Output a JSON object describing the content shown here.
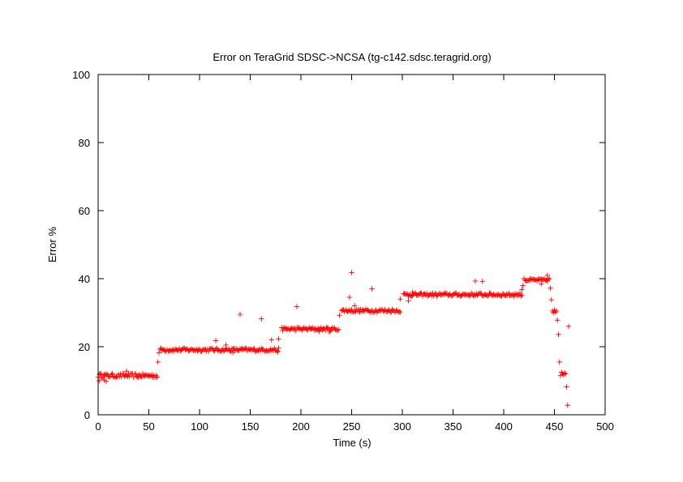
{
  "chart_data": {
    "type": "scatter",
    "title": "Error on TeraGrid SDSC->NCSA (tg-c142.sdsc.teragrid.org)",
    "xlabel": "Time (s)",
    "ylabel": "Error %",
    "xlim": [
      0,
      500
    ],
    "ylim": [
      0,
      100
    ],
    "xticks": [
      "0",
      "50",
      "100",
      "150",
      "200",
      "250",
      "300",
      "350",
      "400",
      "450",
      "500"
    ],
    "yticks": [
      "0",
      "20",
      "40",
      "60",
      "80",
      "100"
    ],
    "grid": false,
    "marker": "+",
    "series_color": "#ff0000",
    "segments": [
      {
        "x_start": 0,
        "x_end": 58,
        "level": 11.5,
        "spread": 0.6
      },
      {
        "x_start": 61,
        "x_end": 178,
        "level": 19.1,
        "spread": 0.5
      },
      {
        "x_start": 181,
        "x_end": 237,
        "level": 25.2,
        "spread": 0.5
      },
      {
        "x_start": 240,
        "x_end": 298,
        "level": 30.6,
        "spread": 0.5
      },
      {
        "x_start": 301,
        "x_end": 418,
        "level": 35.3,
        "spread": 0.5
      },
      {
        "x_start": 421,
        "x_end": 444,
        "level": 39.6,
        "spread": 0.4
      }
    ],
    "points": [
      [
        1,
        10
      ],
      [
        3,
        12
      ],
      [
        6,
        10.2
      ],
      [
        8,
        9.8
      ],
      [
        28,
        12.8
      ],
      [
        40,
        11
      ],
      [
        58,
        11
      ],
      [
        59,
        15.5
      ],
      [
        60,
        18.2
      ],
      [
        116,
        21.8
      ],
      [
        126,
        20.5
      ],
      [
        133,
        18.3
      ],
      [
        140,
        29.5
      ],
      [
        161,
        28.2
      ],
      [
        171,
        22
      ],
      [
        177,
        18.4
      ],
      [
        178,
        22.3
      ],
      [
        196,
        31.8
      ],
      [
        218,
        24.5
      ],
      [
        228,
        24.3
      ],
      [
        238,
        29.2
      ],
      [
        248,
        34.5
      ],
      [
        250,
        41.8
      ],
      [
        253,
        32
      ],
      [
        270,
        37
      ],
      [
        298,
        34
      ],
      [
        306,
        33.5
      ],
      [
        310,
        36
      ],
      [
        372,
        39.3
      ],
      [
        379,
        39.2
      ],
      [
        418,
        36.8
      ],
      [
        419,
        38
      ],
      [
        420,
        40
      ],
      [
        437,
        38.5
      ],
      [
        443,
        41
      ],
      [
        445,
        40
      ],
      [
        446,
        37.2
      ],
      [
        447,
        33.8
      ],
      [
        448,
        30.5
      ],
      [
        449,
        30
      ],
      [
        450,
        30.8
      ],
      [
        451,
        30.2
      ],
      [
        452,
        30.5
      ],
      [
        453,
        27.8
      ],
      [
        454,
        23.6
      ],
      [
        455,
        15.5
      ],
      [
        456,
        11.5
      ],
      [
        457,
        12.5
      ],
      [
        458,
        12
      ],
      [
        459,
        11.8
      ],
      [
        460,
        12.3
      ],
      [
        461,
        12
      ],
      [
        462,
        8.2
      ],
      [
        463,
        2.8
      ],
      [
        464,
        26
      ]
    ]
  }
}
